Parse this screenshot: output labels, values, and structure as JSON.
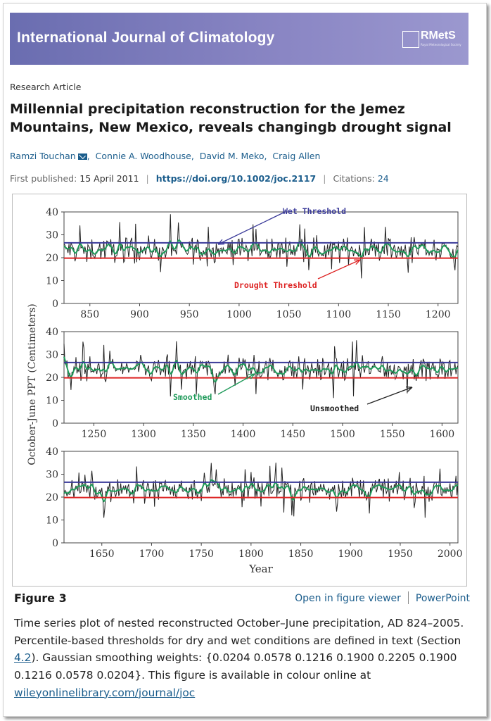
{
  "journal": {
    "title": "International Journal of Climatology",
    "logo_text": "RMetS",
    "logo_sub": "Royal Meteorological Society"
  },
  "article": {
    "type": "Research Article",
    "title": "Millennial precipitation reconstruction for the Jemez Mountains, New Mexico, reveals changingb drought signal",
    "authors": [
      "Ramzi Touchan",
      "Connie A. Woodhouse",
      "David M. Meko",
      "Craig Allen"
    ],
    "first_published_label": "First published:",
    "first_published": "15 April 2011",
    "doi": "https://doi.org/10.1002/joc.2117",
    "citations_label": "Citations:",
    "citations": "24"
  },
  "figure": {
    "label": "Figure 3",
    "open_viewer": "Open in figure viewer",
    "powerpoint": "PowerPoint",
    "caption_parts": {
      "pre": "Time series plot of nested reconstructed October–June precipitation, AD 824–2005. Percentile-based thresholds for dry and wet conditions are defined in text (Section ",
      "section_link": "4.2",
      "post": "). Gaussian smoothing weights: {0.0204 0.0578 0.1216 0.1900 0.2205 0.1900 0.1216 0.0578 0.0204}. This figure is available in colour online at ",
      "url": "wileyonlinelibrary.com/journal/joc"
    }
  },
  "chart_data": {
    "type": "line",
    "ylabel": "October-June PPT (Centimeters)",
    "xlabel": "Year",
    "ylim": [
      0,
      40
    ],
    "yticks": [
      0,
      10,
      20,
      30,
      40
    ],
    "wet_threshold": 26.5,
    "drought_threshold": 19.8,
    "annotations": {
      "wet": "Wet Threshold",
      "drought": "Drought Threshold",
      "smoothed": "Smoothed",
      "unsmoothed": "Unsmoothed"
    },
    "panels": [
      {
        "xlim": [
          824,
          1220
        ],
        "xticks": [
          850,
          900,
          950,
          1000,
          1050,
          1100,
          1150,
          1200
        ]
      },
      {
        "xlim": [
          1220,
          1616
        ],
        "xticks": [
          1250,
          1300,
          1350,
          1400,
          1450,
          1500,
          1550,
          1600
        ]
      },
      {
        "xlim": [
          1612,
          2008
        ],
        "xticks": [
          1650,
          1700,
          1750,
          1800,
          1850,
          1900,
          1950,
          2000
        ]
      }
    ],
    "series": [
      {
        "name": "Unsmoothed",
        "color": "#222222"
      },
      {
        "name": "Smoothed",
        "color": "#1f9a5a"
      }
    ],
    "threshold_colors": {
      "wet": "#3a3a99",
      "drought": "#dd2222"
    }
  }
}
